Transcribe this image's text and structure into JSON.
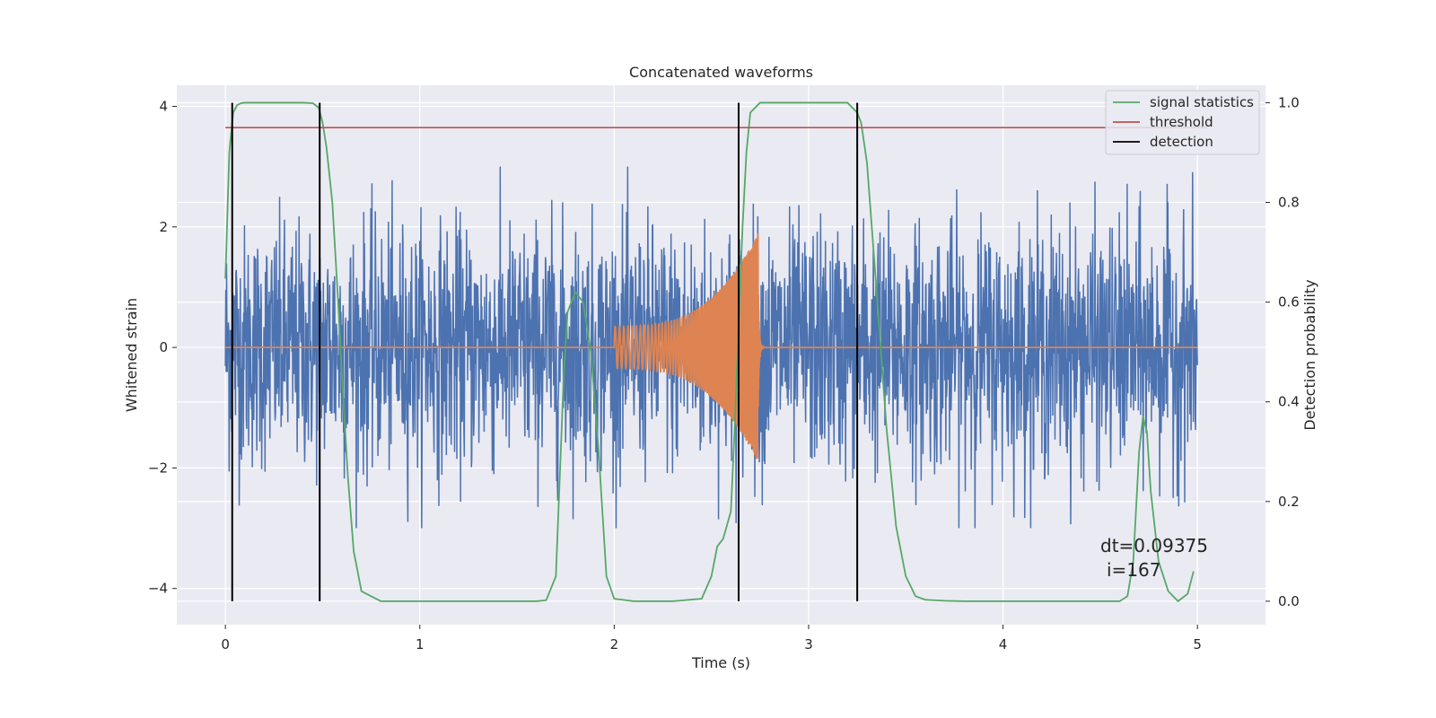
{
  "chart_data": {
    "type": "line",
    "title": "Concatenated waveforms",
    "xlabel": "Time (s)",
    "ylabel": "Whitened strain",
    "y2label": "Detection probability",
    "xlim": [
      -0.25,
      5.35
    ],
    "ylim": [
      -4.6,
      4.35
    ],
    "y2lim": [
      -0.047,
      1.035
    ],
    "x_ticks": [
      0,
      1,
      2,
      3,
      4,
      5
    ],
    "x_tick_labels": [
      "0",
      "1",
      "2",
      "3",
      "4",
      "5"
    ],
    "y_ticks": [
      -4,
      -2,
      0,
      2,
      4
    ],
    "y_tick_labels": [
      "−4",
      "−2",
      "0",
      "2",
      "4"
    ],
    "y2_ticks": [
      0.0,
      0.2,
      0.4,
      0.6,
      0.8,
      1.0
    ],
    "y2_tick_labels": [
      "0.0",
      "0.2",
      "0.4",
      "0.6",
      "0.8",
      "1.0"
    ],
    "grid": true,
    "legend_position": "top-right",
    "colors": {
      "strain": "#4c72b0",
      "template": "#dd8452",
      "signal_statistics": "#55a868",
      "threshold": "#c44e52",
      "detection": "#000000",
      "axes_bg": "#eaeaf2",
      "grid": "#ffffff"
    },
    "series": [
      {
        "name": "",
        "axis": "left",
        "kind": "noise",
        "x_range": [
          0,
          5
        ],
        "envelope_y": 3
      },
      {
        "name": "",
        "axis": "left",
        "kind": "chirp",
        "x_start": 2.0,
        "x_end": 2.74,
        "start_amplitude": 0.35,
        "peak_amplitude_pos": 1.75,
        "peak_amplitude_neg": -2.1
      },
      {
        "name": "signal statistics",
        "axis": "right",
        "x": [
          0,
          0.02,
          0.04,
          0.06,
          0.08,
          0.1,
          0.15,
          0.2,
          0.3,
          0.4,
          0.45,
          0.48,
          0.5,
          0.52,
          0.55,
          0.58,
          0.6,
          0.63,
          0.66,
          0.7,
          0.8,
          1.0,
          1.2,
          1.4,
          1.6,
          1.65,
          1.7,
          1.72,
          1.74,
          1.76,
          1.8,
          1.84,
          1.88,
          1.92,
          1.96,
          2.0,
          2.1,
          2.3,
          2.45,
          2.5,
          2.53,
          2.56,
          2.6,
          2.62,
          2.64,
          2.66,
          2.68,
          2.7,
          2.75,
          2.9,
          3.0,
          3.1,
          3.2,
          3.25,
          3.27,
          3.3,
          3.35,
          3.4,
          3.45,
          3.5,
          3.55,
          3.6,
          3.7,
          3.8,
          4.0,
          4.2,
          4.4,
          4.6,
          4.64,
          4.67,
          4.7,
          4.72,
          4.74,
          4.76,
          4.8,
          4.85,
          4.9,
          4.95,
          4.98
        ],
        "y": [
          0.647,
          0.9,
          0.98,
          0.995,
          0.999,
          1.0,
          1.0,
          1.0,
          1.0,
          1.0,
          0.999,
          0.99,
          0.96,
          0.91,
          0.8,
          0.6,
          0.45,
          0.25,
          0.1,
          0.02,
          0.0,
          0.0,
          0.0,
          0.0,
          0.0,
          0.002,
          0.05,
          0.25,
          0.45,
          0.58,
          0.62,
          0.6,
          0.5,
          0.3,
          0.05,
          0.005,
          0.0,
          0.0,
          0.005,
          0.05,
          0.11,
          0.125,
          0.18,
          0.35,
          0.55,
          0.75,
          0.9,
          0.98,
          1.0,
          1.0,
          1.0,
          1.0,
          1.0,
          0.98,
          0.96,
          0.88,
          0.62,
          0.35,
          0.15,
          0.05,
          0.01,
          0.003,
          0.001,
          0.0,
          0.0,
          0.0,
          0.0,
          0.0,
          0.01,
          0.08,
          0.3,
          0.37,
          0.34,
          0.22,
          0.08,
          0.02,
          0.0,
          0.015,
          0.06
        ]
      },
      {
        "name": "threshold",
        "axis": "right",
        "x": [
          0,
          5.05
        ],
        "y": [
          0.95,
          0.95
        ]
      },
      {
        "name": "detection",
        "axis": "right",
        "kind": "vlines",
        "x": [
          0.035,
          0.485,
          2.64,
          3.25
        ],
        "ymin": 0.0,
        "ymax": 1.0
      }
    ],
    "annotations": [
      "dt=0.09375",
      "i=167"
    ],
    "annotation_position": "bottom-right"
  }
}
